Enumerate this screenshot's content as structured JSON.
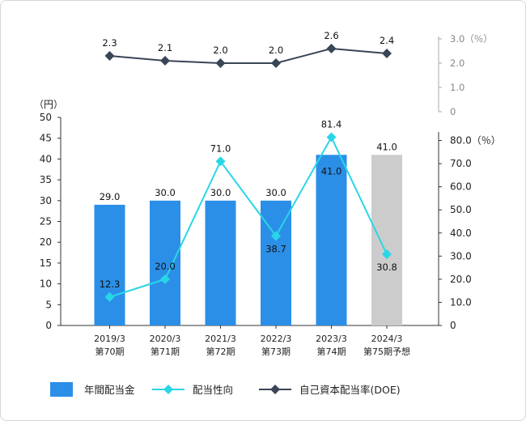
{
  "chart_data": {
    "type": "bar",
    "categories": [
      [
        "2019/3",
        "第70期"
      ],
      [
        "2020/3",
        "第71期"
      ],
      [
        "2021/3",
        "第72期"
      ],
      [
        "2022/3",
        "第73期"
      ],
      [
        "2023/3",
        "第74期"
      ],
      [
        "2024/3",
        "第75期予想"
      ]
    ],
    "series": [
      {
        "name": "年間配当金",
        "type": "bar",
        "axis": "left",
        "values": [
          29.0,
          30.0,
          30.0,
          30.0,
          41.0,
          41.0
        ],
        "labels": [
          "29.0",
          "30.0",
          "30.0",
          "30.0",
          "41.0",
          "41.0"
        ],
        "forecast_index": 5,
        "color": "#2b8fe8",
        "forecast_color": "#cccccc"
      },
      {
        "name": "配当性向",
        "type": "line",
        "axis": "right",
        "values": [
          12.3,
          20.0,
          71.0,
          38.7,
          81.4,
          30.8
        ],
        "labels": [
          "12.3",
          "20.0",
          "71.0",
          "38.7",
          "81.4",
          "30.8"
        ],
        "color": "#29d6e6"
      },
      {
        "name": "自己資本配当率(DOE)",
        "type": "line",
        "axis": "top-right",
        "values": [
          2.3,
          2.1,
          2.0,
          2.0,
          2.6,
          2.4
        ],
        "labels": [
          "2.3",
          "2.1",
          "2.0",
          "2.0",
          "2.6",
          "2.4"
        ],
        "color": "#3a4556"
      }
    ],
    "left_axis": {
      "unit": "（円）",
      "ylim": [
        0,
        50
      ],
      "ticks": [
        "0",
        "5",
        "10",
        "15",
        "20",
        "25",
        "30",
        "35",
        "40",
        "45",
        "50"
      ]
    },
    "right_axis": {
      "ylim": [
        0,
        90
      ],
      "ticks": [
        "0",
        "10.0",
        "20.0",
        "30.0",
        "40.0",
        "50.0",
        "60.0",
        "70.0",
        "80.0（％）"
      ]
    },
    "top_right_axis": {
      "ylim": [
        0,
        3.0
      ],
      "ticks": [
        "0",
        "1.0",
        "2.0",
        "3.0（％）"
      ]
    },
    "legend": {
      "placement": "bottom-left",
      "items": [
        "年間配当金",
        "配当性向",
        "自己資本配当率(DOE)"
      ]
    }
  }
}
